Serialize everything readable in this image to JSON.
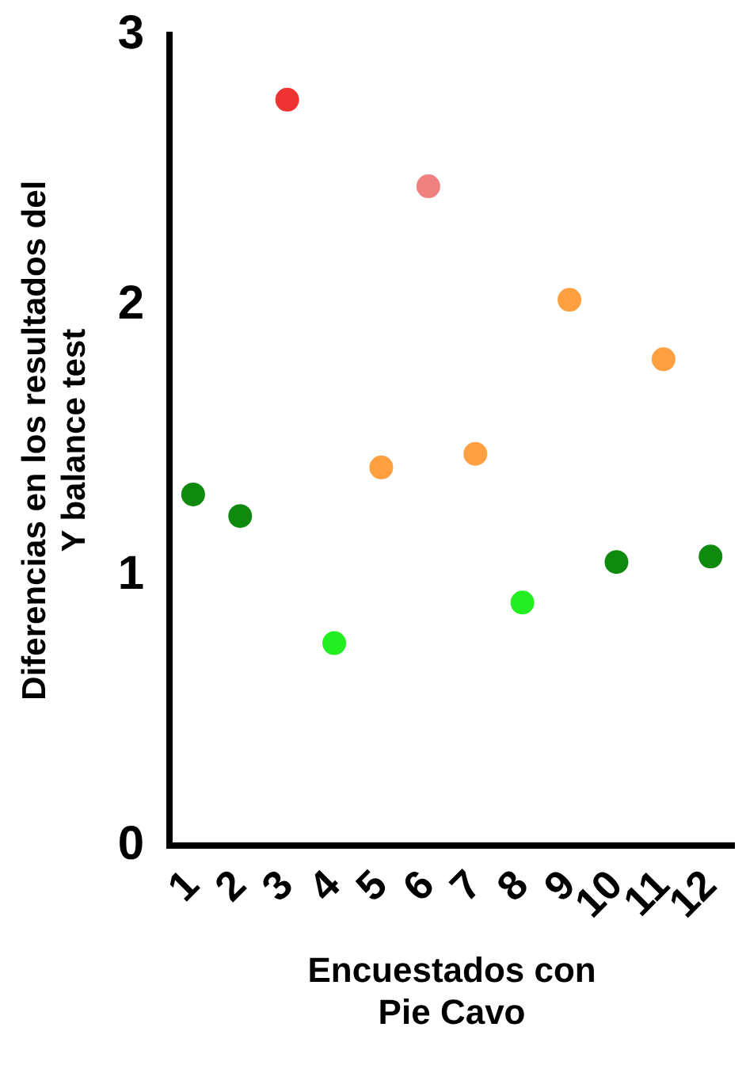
{
  "chart_data": {
    "type": "scatter",
    "xlabel": "Encuestados con Pie Cavo",
    "ylabel": "Diferencias en los resultados del Y balance test",
    "categories": [
      "1",
      "2",
      "3",
      "4",
      "5",
      "6",
      "7",
      "8",
      "9",
      "10",
      "11",
      "12"
    ],
    "values": [
      1.3,
      1.22,
      2.76,
      0.75,
      1.4,
      2.44,
      1.45,
      0.9,
      2.02,
      1.05,
      1.8,
      1.07
    ],
    "colors": [
      "#0f8a0f",
      "#0f8a0f",
      "#ee3333",
      "#22ee22",
      "#ffa040",
      "#f08080",
      "#ffa040",
      "#22ee22",
      "#ffa040",
      "#0f8a0f",
      "#ffa040",
      "#0f8a0f"
    ],
    "ylim": [
      0,
      3
    ],
    "yticks": [
      0,
      1,
      2,
      3
    ],
    "grid": false,
    "legend": false,
    "marker": "circle"
  }
}
